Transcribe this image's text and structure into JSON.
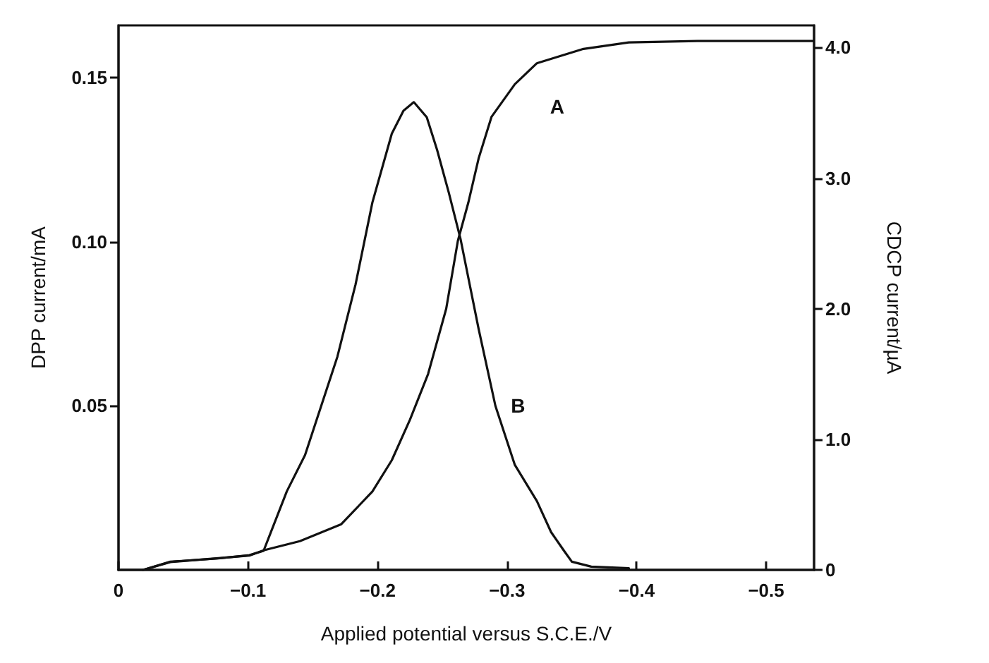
{
  "chart_data": {
    "type": "line",
    "xlabel": "Applied potential versus S.C.E./V",
    "ylabel": "DPP current/mA",
    "y2label": "CDCP current/µA",
    "xlim": [
      0,
      -0.537
    ],
    "xticks": [
      0,
      {
        "value": -0.1,
        "label": "−0.1"
      },
      {
        "value": -0.2,
        "label": "−0.2"
      },
      {
        "value": -0.3,
        "label": "−0.3"
      },
      {
        "value": -0.4,
        "label": "−0.4"
      },
      {
        "value": -0.5,
        "label": "−0.5"
      }
    ],
    "ylim": [
      0,
      0.166
    ],
    "yticks": [
      0.05,
      {
        "value": 0.1,
        "label": "0.10"
      },
      0.15
    ],
    "y2lim": [
      0,
      4.17
    ],
    "y2ticks": [
      0,
      {
        "value": 1,
        "label": "1.0"
      },
      {
        "value": 2,
        "label": "2.0"
      },
      {
        "value": 3,
        "label": "3.0"
      },
      {
        "value": 4,
        "label": "4.0"
      }
    ],
    "grid": false,
    "legend": false,
    "marker": "none",
    "line_style": "solid",
    "series": [
      {
        "name": "A",
        "color": "#111111",
        "axis": "y2",
        "x": [
          -0.019,
          -0.04,
          -0.077,
          -0.101,
          -0.112,
          -0.14,
          -0.172,
          -0.196,
          -0.211,
          -0.225,
          -0.239,
          -0.253,
          -0.262,
          -0.27,
          -0.278,
          -0.288,
          -0.306,
          -0.323,
          -0.359,
          -0.394,
          -0.447,
          -0.536
        ],
        "values": [
          0,
          0.06,
          0.09,
          0.11,
          0.15,
          0.22,
          0.35,
          0.6,
          0.84,
          1.15,
          1.5,
          2.0,
          2.52,
          2.81,
          3.15,
          3.47,
          3.72,
          3.88,
          3.99,
          4.04,
          4.05,
          4.05
        ]
      },
      {
        "name": "B",
        "color": "#111111",
        "x": [
          0,
          -0.019,
          -0.04,
          -0.077,
          -0.101,
          -0.112,
          -0.13,
          -0.144,
          -0.169,
          -0.183,
          -0.196,
          -0.211,
          -0.22,
          -0.228,
          -0.238,
          -0.246,
          -0.255,
          -0.264,
          -0.278,
          -0.291,
          -0.306,
          -0.323,
          -0.334,
          -0.344,
          -0.35,
          -0.365,
          -0.394
        ],
        "values": [
          0,
          0,
          0.0025,
          0.0035,
          0.0045,
          0.0058,
          0.024,
          0.035,
          0.065,
          0.087,
          0.112,
          0.133,
          0.14,
          0.1426,
          0.138,
          0.128,
          0.115,
          0.101,
          0.0735,
          0.05,
          0.032,
          0.021,
          0.0115,
          0.0058,
          0.0025,
          0.001,
          0.0005
        ]
      }
    ]
  }
}
